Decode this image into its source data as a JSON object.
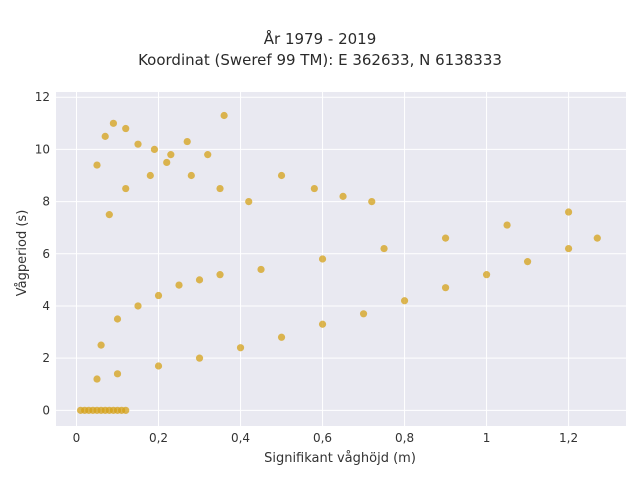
{
  "chart_data": {
    "type": "scatter",
    "title_line_1": "År 1979 - 2019",
    "title_line_2": "Koordinat (Sweref 99 TM): E 362633, N 6138333",
    "xlabel": "Signifikant våghöjd (m)",
    "ylabel": "Vågperiod (s)",
    "xlim": [
      -0.05,
      1.34
    ],
    "ylim": [
      -0.6,
      12.2
    ],
    "x_ticks": [
      0,
      0.2,
      0.4,
      0.6,
      0.8,
      1,
      1.2
    ],
    "x_tick_labels": [
      "0",
      "0,2",
      "0,4",
      "0,6",
      "0,8",
      "1",
      "1,2"
    ],
    "y_ticks": [
      0,
      2,
      4,
      6,
      8,
      10,
      12
    ],
    "y_tick_labels": [
      "0",
      "2",
      "4",
      "6",
      "8",
      "10",
      "12"
    ],
    "grid": true,
    "marker_color": "#D4A017",
    "background_color": "#E9E9F1",
    "series": [
      {
        "values_x": [
          0.01,
          0.02,
          0.03,
          0.04,
          0.05,
          0.06,
          0.07,
          0.08,
          0.09,
          0.1,
          0.11,
          0.12,
          0.05,
          0.1,
          0.2,
          0.3,
          0.4,
          0.5,
          0.6,
          0.7,
          0.8,
          0.9,
          1.0,
          1.1,
          1.2,
          1.27,
          0.06,
          0.1,
          0.15,
          0.2,
          0.25,
          0.3,
          0.35,
          0.45,
          0.6,
          0.75,
          0.9,
          1.05,
          1.2,
          0.08,
          0.12,
          0.18,
          0.22,
          0.28,
          0.35,
          0.42,
          0.5,
          0.58,
          0.65,
          0.72,
          0.05,
          0.07,
          0.09,
          0.12,
          0.15,
          0.19,
          0.23,
          0.27,
          0.32,
          0.36
        ],
        "values_y": [
          0,
          0,
          0,
          0,
          0,
          0,
          0,
          0,
          0,
          0,
          0,
          0,
          1.2,
          1.4,
          1.7,
          2.0,
          2.4,
          2.8,
          3.3,
          3.7,
          4.2,
          4.7,
          5.2,
          5.7,
          6.2,
          6.6,
          2.5,
          3.5,
          4.0,
          4.4,
          4.8,
          5.0,
          5.2,
          5.4,
          5.8,
          6.2,
          6.6,
          7.1,
          7.6,
          7.5,
          8.5,
          9.0,
          9.5,
          9.0,
          8.5,
          8.0,
          9.0,
          8.5,
          8.2,
          8.0,
          9.4,
          10.5,
          11.0,
          10.8,
          10.2,
          10.0,
          9.8,
          10.3,
          9.8,
          11.3
        ]
      }
    ]
  }
}
